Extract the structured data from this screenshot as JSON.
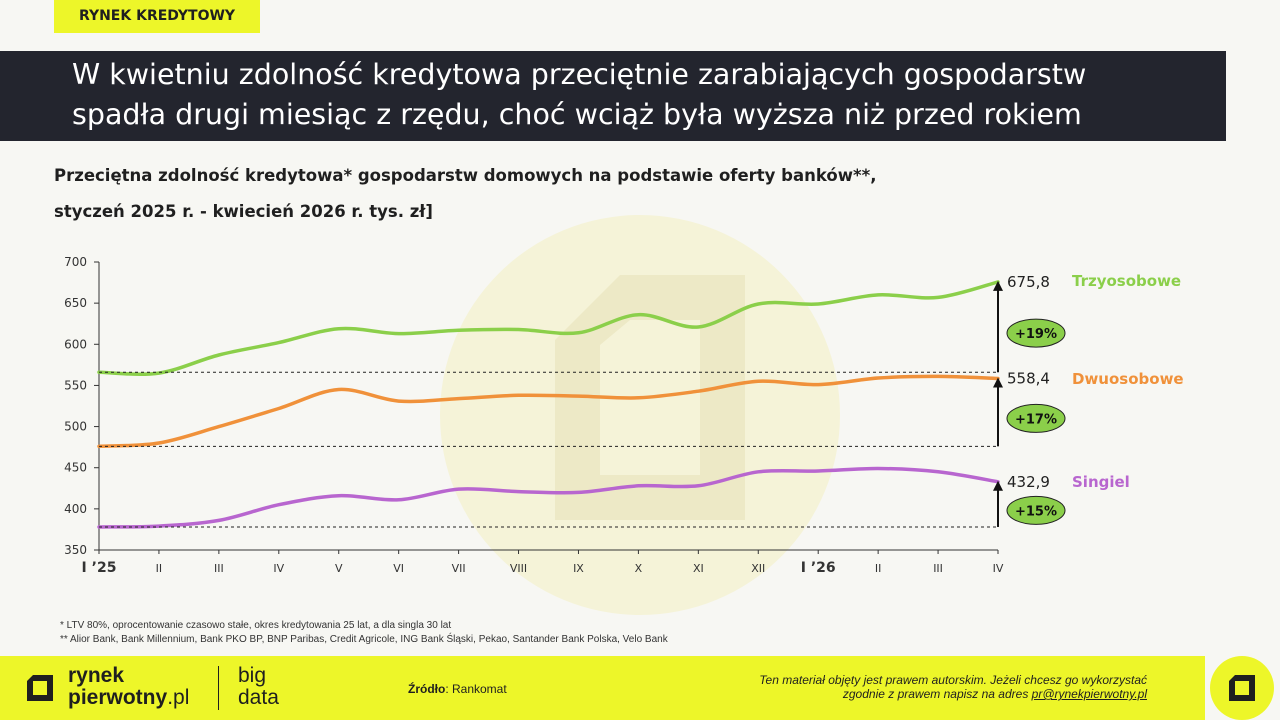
{
  "section_tag": "RYNEK KREDYTOWY",
  "headline": {
    "line1": "W kwietniu zdolność kredytowa przeciętnie zarabiających gospodarstw",
    "line2": "spadła drugi miesiąc z rzędu, choć wciąż była wyższa niż przed rokiem"
  },
  "subtitle": {
    "line1": "Przeciętna zdolność kredytowa* gospodarstw domowych na podstawie oferty banków**,",
    "line2": "styczeń 2025 r. - kwiecień 2026 r. tys. zł]"
  },
  "chart_data": {
    "type": "line",
    "categories": [
      "I ’25",
      "II",
      "III",
      "IV",
      "V",
      "VI",
      "VII",
      "VIII",
      "IX",
      "X",
      "XI",
      "XII",
      "I ’26",
      "II",
      "III",
      "IV"
    ],
    "bold_categories": [
      "I ’25",
      "I ’26"
    ],
    "ylim": [
      350,
      700
    ],
    "yticks": [
      350,
      400,
      450,
      500,
      550,
      600,
      650,
      700
    ],
    "grid": false,
    "series": [
      {
        "name": "Trzyosobowe",
        "color": "#8bcf4a",
        "values": [
          566,
          565,
          587,
          602,
          619,
          613,
          617,
          618,
          614,
          636,
          621,
          649,
          649,
          660,
          657,
          675.8
        ],
        "end_label": "675,8",
        "change": "+19%"
      },
      {
        "name": "Dwuosobowe",
        "color": "#f0913a",
        "values": [
          476,
          480,
          500,
          522,
          545,
          531,
          534,
          538,
          537,
          535,
          543,
          555,
          551,
          559,
          561,
          558.4
        ],
        "end_label": "558,4",
        "change": "+17%"
      },
      {
        "name": "Singiel",
        "color": "#b866cf",
        "values": [
          378,
          379,
          386,
          405,
          416,
          411,
          424,
          421,
          420,
          428,
          428,
          445,
          446,
          449,
          445,
          432.9
        ],
        "end_label": "432,9",
        "change": "+15%"
      }
    ],
    "badge_color": "#8bcf4a"
  },
  "footnotes": [
    "* LTV 80%, oprocentowanie czasowo stałe, okres kredytowania 25 lat, a dla singla 30 lat",
    "** Alior Bank, Bank Millennium, Bank PKO BP, BNP Paribas, Credit Agricole, ING Bank Śląski, Pekao, Santander Bank Polska, Velo Bank"
  ],
  "footer": {
    "logo_line1": "rynek",
    "logo_line2_bold": "pierwotny",
    "logo_line2_suffix": ".pl",
    "bigdata_line1": "big",
    "bigdata_line2": "data",
    "source_label": "Źródło",
    "source_value": ": Rankomat",
    "copyright_line1": "Ten materiał objęty jest prawem autorskim. Jeżeli chcesz go wykorzystać",
    "copyright_line2_prefix": "zgodnie z prawem napisz na adres ",
    "copyright_email": "pr@rynekpierwotny.pl"
  },
  "colors": {
    "accent_yellow": "#edf629",
    "headline_bg": "#23252e",
    "page_bg": "#f7f7f3"
  }
}
